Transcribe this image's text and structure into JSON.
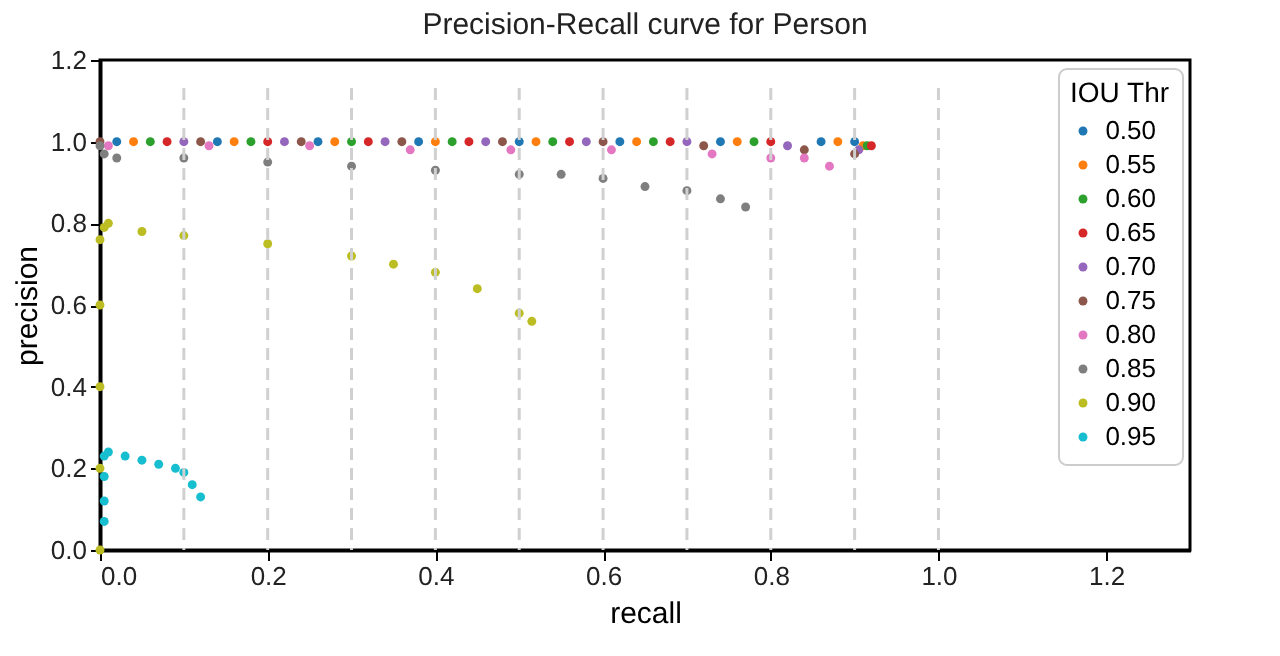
{
  "chart_data": {
    "type": "scatter",
    "title": "Precision-Recall curve for Person",
    "xlabel": "recall",
    "ylabel": "precision",
    "legend_title": "IOU Thr",
    "legend": "top right",
    "marker": "circle",
    "grid": false,
    "xlim": [
      0,
      1.3
    ],
    "ylim": [
      0,
      1.2
    ],
    "xticks": [
      {
        "value": 0,
        "label": "0.0"
      },
      {
        "value": 0.2,
        "label": "0.2"
      },
      {
        "value": 0.4,
        "label": "0.4"
      },
      {
        "value": 0.6,
        "label": "0.6"
      },
      {
        "value": 0.8,
        "label": "0.8"
      },
      {
        "value": 1.0,
        "label": "1.0"
      },
      {
        "value": 1.2,
        "label": "1.2"
      }
    ],
    "yticks": [
      {
        "value": 0,
        "label": "0.0"
      },
      {
        "value": 0.2,
        "label": "0.2"
      },
      {
        "value": 0.4,
        "label": "0.4"
      },
      {
        "value": 0.6,
        "label": "0.6"
      },
      {
        "value": 0.8,
        "label": "0.8"
      },
      {
        "value": 1.0,
        "label": "1.0"
      },
      {
        "value": 1.2,
        "label": "1.2"
      }
    ],
    "ref_lines": [
      {
        "axis": "x",
        "value": 0.1,
        "color": "#d0d0d0",
        "line_style": "dashed"
      },
      {
        "axis": "x",
        "value": 0.2,
        "color": "#d0d0d0",
        "line_style": "dashed"
      },
      {
        "axis": "x",
        "value": 0.3,
        "color": "#d0d0d0",
        "line_style": "dashed"
      },
      {
        "axis": "x",
        "value": 0.4,
        "color": "#d0d0d0",
        "line_style": "dashed"
      },
      {
        "axis": "x",
        "value": 0.5,
        "color": "#d0d0d0",
        "line_style": "dashed"
      },
      {
        "axis": "x",
        "value": 0.6,
        "color": "#d0d0d0",
        "line_style": "dashed"
      },
      {
        "axis": "x",
        "value": 0.7,
        "color": "#d0d0d0",
        "line_style": "dashed"
      },
      {
        "axis": "x",
        "value": 0.8,
        "color": "#d0d0d0",
        "line_style": "dashed"
      },
      {
        "axis": "x",
        "value": 0.9,
        "color": "#d0d0d0",
        "line_style": "dashed"
      },
      {
        "axis": "x",
        "value": 1.0,
        "color": "#d0d0d0",
        "line_style": "dashed"
      }
    ],
    "series": [
      {
        "name": "0.50",
        "color": "#1f77b4",
        "x": [
          0.02,
          0.14,
          0.26,
          0.38,
          0.5,
          0.62,
          0.74,
          0.86,
          0.9
        ],
        "values": [
          1.0,
          1.0,
          1.0,
          1.0,
          1.0,
          1.0,
          1.0,
          1.0,
          1.0
        ]
      },
      {
        "name": "0.55",
        "color": "#ff7f0e",
        "x": [
          0.04,
          0.16,
          0.28,
          0.4,
          0.52,
          0.64,
          0.76,
          0.88,
          0.91
        ],
        "values": [
          1.0,
          1.0,
          1.0,
          1.0,
          1.0,
          1.0,
          1.0,
          1.0,
          0.99
        ]
      },
      {
        "name": "0.60",
        "color": "#2ca02c",
        "x": [
          0.06,
          0.18,
          0.3,
          0.42,
          0.54,
          0.66,
          0.78,
          0.915
        ],
        "values": [
          1.0,
          1.0,
          1.0,
          1.0,
          1.0,
          1.0,
          1.0,
          0.99
        ]
      },
      {
        "name": "0.65",
        "color": "#d62728",
        "x": [
          0.08,
          0.2,
          0.32,
          0.44,
          0.56,
          0.68,
          0.8,
          0.92
        ],
        "values": [
          1.0,
          1.0,
          1.0,
          1.0,
          1.0,
          1.0,
          1.0,
          0.99
        ]
      },
      {
        "name": "0.70",
        "color": "#9467bd",
        "x": [
          0.1,
          0.22,
          0.34,
          0.46,
          0.58,
          0.7,
          0.82,
          0.905
        ],
        "values": [
          1.0,
          1.0,
          1.0,
          1.0,
          1.0,
          1.0,
          0.99,
          0.98
        ]
      },
      {
        "name": "0.75",
        "color": "#8c564b",
        "x": [
          0,
          0.12,
          0.24,
          0.36,
          0.48,
          0.6,
          0.72,
          0.84,
          0.9
        ],
        "values": [
          1.0,
          1.0,
          1.0,
          1.0,
          1.0,
          1.0,
          0.99,
          0.98,
          0.97
        ]
      },
      {
        "name": "0.80",
        "color": "#e377c2",
        "x": [
          0.01,
          0.13,
          0.25,
          0.37,
          0.49,
          0.61,
          0.73,
          0.8,
          0.84,
          0.87
        ],
        "values": [
          0.99,
          0.99,
          0.99,
          0.98,
          0.98,
          0.98,
          0.97,
          0.96,
          0.96,
          0.94
        ]
      },
      {
        "name": "0.85",
        "color": "#7f7f7f",
        "x": [
          0,
          0.005,
          0.02,
          0.1,
          0.2,
          0.3,
          0.4,
          0.5,
          0.55,
          0.6,
          0.65,
          0.7,
          0.74,
          0.77
        ],
        "values": [
          0.99,
          0.97,
          0.96,
          0.96,
          0.95,
          0.94,
          0.93,
          0.92,
          0.92,
          0.91,
          0.89,
          0.88,
          0.86,
          0.84
        ]
      },
      {
        "name": "0.90",
        "color": "#bcbd22",
        "x": [
          0,
          0,
          0,
          0,
          0,
          0.005,
          0.01,
          0.05,
          0.1,
          0.2,
          0.3,
          0.35,
          0.4,
          0.45,
          0.5,
          0.515
        ],
        "values": [
          0.0,
          0.2,
          0.4,
          0.6,
          0.76,
          0.79,
          0.8,
          0.78,
          0.77,
          0.75,
          0.72,
          0.7,
          0.68,
          0.64,
          0.58,
          0.56
        ]
      },
      {
        "name": "0.95",
        "color": "#17becf",
        "x": [
          0.005,
          0.005,
          0.005,
          0.005,
          0.01,
          0.03,
          0.05,
          0.07,
          0.09,
          0.1,
          0.11,
          0.12
        ],
        "values": [
          0.07,
          0.12,
          0.18,
          0.23,
          0.24,
          0.23,
          0.22,
          0.21,
          0.2,
          0.19,
          0.16,
          0.13
        ]
      }
    ]
  }
}
